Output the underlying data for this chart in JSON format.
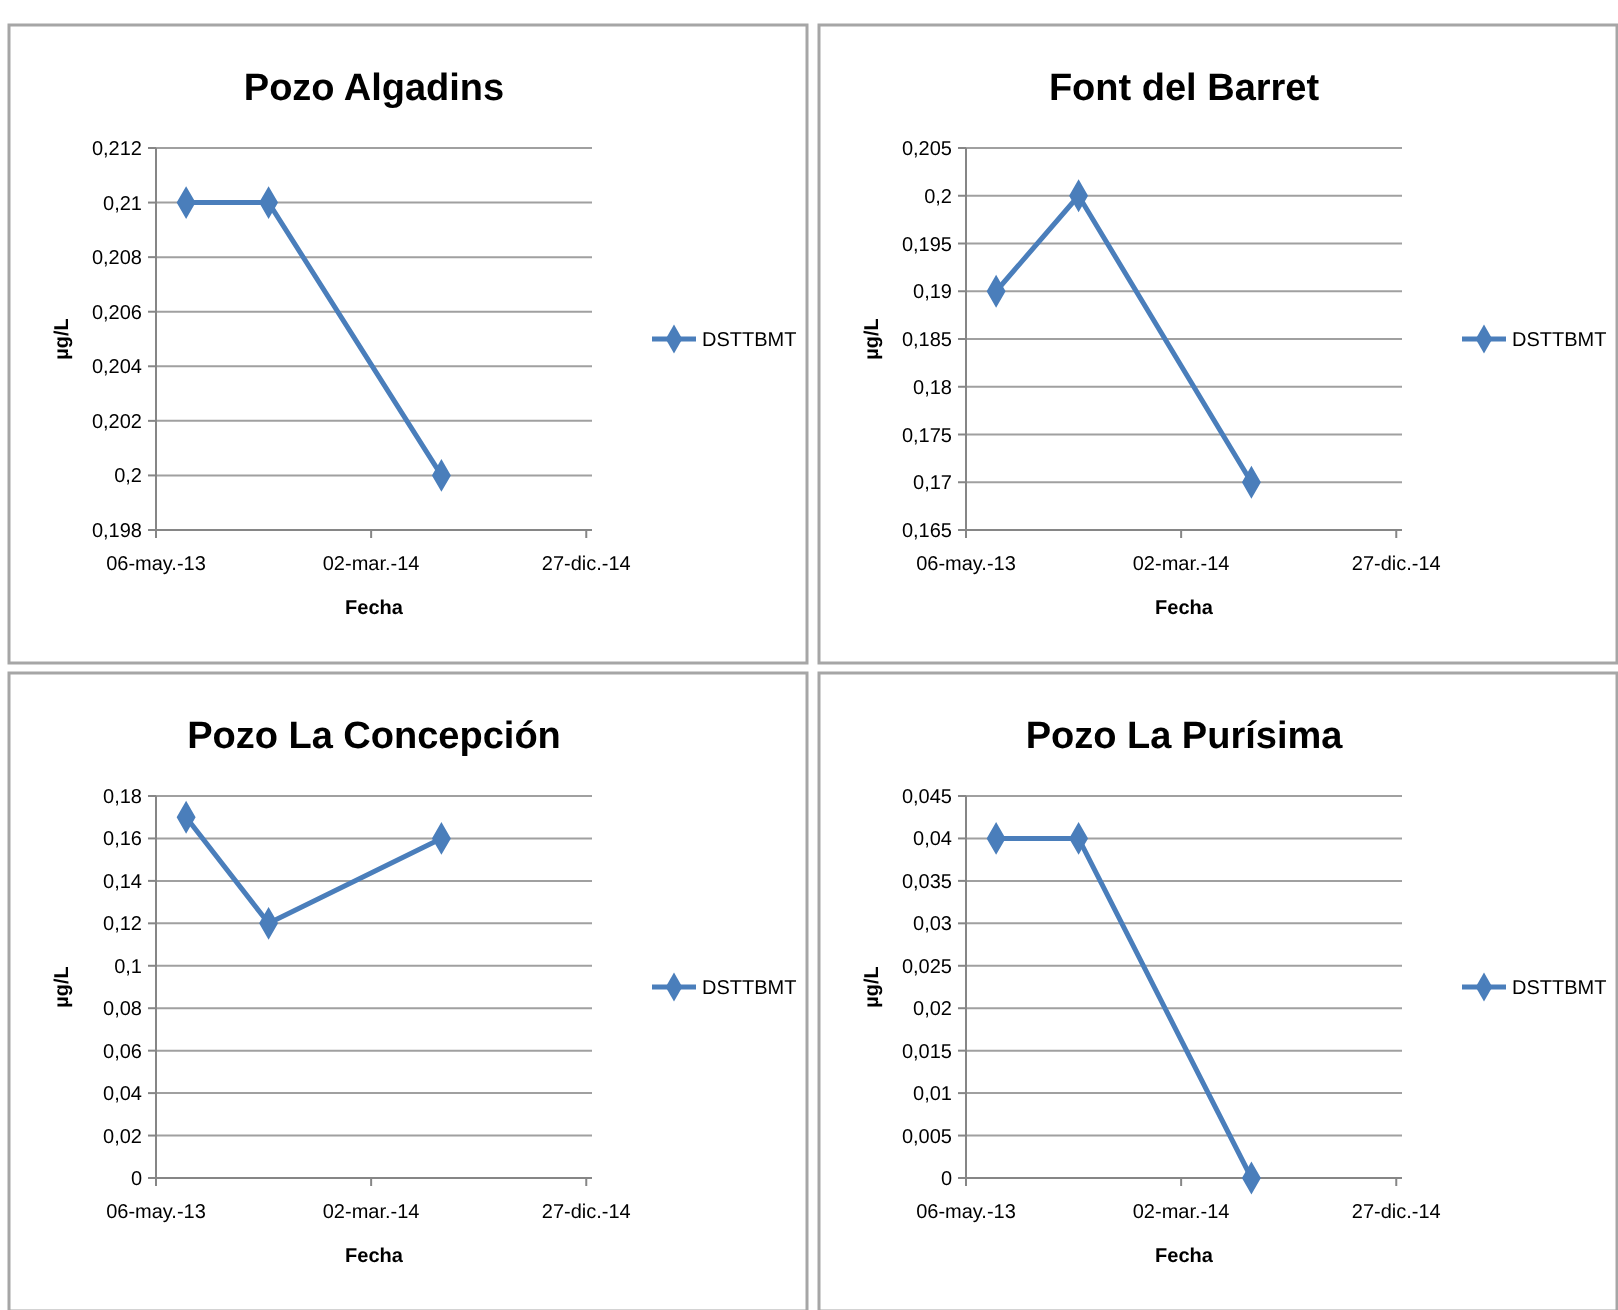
{
  "chart_data": [
    {
      "type": "line",
      "title": "Pozo Algadins",
      "xlabel": "Fecha",
      "ylabel": "µg/L",
      "x": [
        "2013-06-17",
        "2013-10-10",
        "2014-06-08"
      ],
      "series": [
        {
          "name": "DSTTBMT",
          "color": "#4a7ebb",
          "values": [
            0.21,
            0.21,
            0.2
          ]
        }
      ],
      "xlim": [
        "2013-05-06",
        "2015-01-04"
      ],
      "xticks": [
        {
          "value": "2013-05-06",
          "label": "06-may.-13"
        },
        {
          "value": "2014-03-02",
          "label": "02-mar.-14"
        },
        {
          "value": "2014-12-27",
          "label": "27-dic.-14"
        }
      ],
      "ylim": [
        0.198,
        0.212
      ],
      "yticks": [
        {
          "value": 0.198,
          "label": "0,198"
        },
        {
          "value": 0.2,
          "label": "0,2"
        },
        {
          "value": 0.202,
          "label": "0,202"
        },
        {
          "value": 0.204,
          "label": "0,204"
        },
        {
          "value": 0.206,
          "label": "0,206"
        },
        {
          "value": 0.208,
          "label": "0,208"
        },
        {
          "value": 0.21,
          "label": "0,21"
        },
        {
          "value": 0.212,
          "label": "0,212"
        }
      ],
      "grid": "y",
      "legend": "right",
      "marker": "diamond"
    },
    {
      "type": "line",
      "title": "Font del Barret",
      "xlabel": "Fecha",
      "ylabel": "µg/L",
      "x": [
        "2013-06-17",
        "2013-10-10",
        "2014-06-08"
      ],
      "series": [
        {
          "name": "DSTTBMT",
          "color": "#4a7ebb",
          "values": [
            0.19,
            0.2,
            0.17
          ]
        }
      ],
      "xlim": [
        "2013-05-06",
        "2015-01-04"
      ],
      "xticks": [
        {
          "value": "2013-05-06",
          "label": "06-may.-13"
        },
        {
          "value": "2014-03-02",
          "label": "02-mar.-14"
        },
        {
          "value": "2014-12-27",
          "label": "27-dic.-14"
        }
      ],
      "ylim": [
        0.165,
        0.205
      ],
      "yticks": [
        {
          "value": 0.165,
          "label": "0,165"
        },
        {
          "value": 0.17,
          "label": "0,17"
        },
        {
          "value": 0.175,
          "label": "0,175"
        },
        {
          "value": 0.18,
          "label": "0,18"
        },
        {
          "value": 0.185,
          "label": "0,185"
        },
        {
          "value": 0.19,
          "label": "0,19"
        },
        {
          "value": 0.195,
          "label": "0,195"
        },
        {
          "value": 0.2,
          "label": "0,2"
        },
        {
          "value": 0.205,
          "label": "0,205"
        }
      ],
      "grid": "y",
      "legend": "right",
      "marker": "diamond"
    },
    {
      "type": "line",
      "title": "Pozo La Concepción",
      "xlabel": "Fecha",
      "ylabel": "µg/L",
      "x": [
        "2013-06-17",
        "2013-10-10",
        "2014-06-08"
      ],
      "series": [
        {
          "name": "DSTTBMT",
          "color": "#4a7ebb",
          "values": [
            0.17,
            0.12,
            0.16
          ]
        }
      ],
      "xlim": [
        "2013-05-06",
        "2015-01-04"
      ],
      "xticks": [
        {
          "value": "2013-05-06",
          "label": "06-may.-13"
        },
        {
          "value": "2014-03-02",
          "label": "02-mar.-14"
        },
        {
          "value": "2014-12-27",
          "label": "27-dic.-14"
        }
      ],
      "ylim": [
        0,
        0.18
      ],
      "yticks": [
        0,
        {
          "value": 0.02,
          "label": "0,02"
        },
        {
          "value": 0.04,
          "label": "0,04"
        },
        {
          "value": 0.06,
          "label": "0,06"
        },
        {
          "value": 0.08,
          "label": "0,08"
        },
        {
          "value": 0.1,
          "label": "0,1"
        },
        {
          "value": 0.12,
          "label": "0,12"
        },
        {
          "value": 0.14,
          "label": "0,14"
        },
        {
          "value": 0.16,
          "label": "0,16"
        },
        {
          "value": 0.18,
          "label": "0,18"
        }
      ],
      "grid": "y",
      "legend": "right",
      "marker": "diamond"
    },
    {
      "type": "line",
      "title": "Pozo La Purísima",
      "xlabel": "Fecha",
      "ylabel": "µg/L",
      "x": [
        "2013-06-17",
        "2013-10-10",
        "2014-06-08"
      ],
      "series": [
        {
          "name": "DSTTBMT",
          "color": "#4a7ebb",
          "values": [
            0.04,
            0.04,
            0
          ]
        }
      ],
      "xlim": [
        "2013-05-06",
        "2015-01-04"
      ],
      "xticks": [
        {
          "value": "2013-05-06",
          "label": "06-may.-13"
        },
        {
          "value": "2014-03-02",
          "label": "02-mar.-14"
        },
        {
          "value": "2014-12-27",
          "label": "27-dic.-14"
        }
      ],
      "ylim": [
        0,
        0.045
      ],
      "yticks": [
        0,
        {
          "value": 0.005,
          "label": "0,005"
        },
        {
          "value": 0.01,
          "label": "0,01"
        },
        {
          "value": 0.015,
          "label": "0,015"
        },
        {
          "value": 0.02,
          "label": "0,02"
        },
        {
          "value": 0.025,
          "label": "0,025"
        },
        {
          "value": 0.03,
          "label": "0,03"
        },
        {
          "value": 0.035,
          "label": "0,035"
        },
        {
          "value": 0.04,
          "label": "0,04"
        },
        {
          "value": 0.045,
          "label": "0,045"
        }
      ],
      "grid": "y",
      "legend": "right",
      "marker": "diamond"
    }
  ]
}
